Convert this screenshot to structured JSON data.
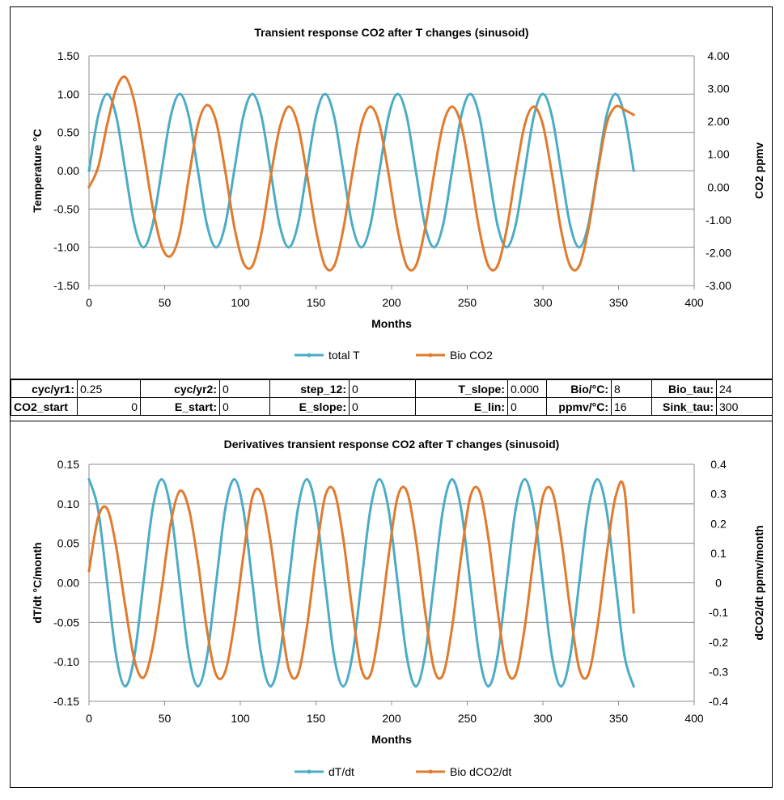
{
  "chart_data": [
    {
      "type": "line",
      "title": "Transient response CO2 after T changes (sinusoid)",
      "xlabel": "Months",
      "ylabel": "Temperature °C",
      "y2label": "CO2 ppmv",
      "xlim": [
        0,
        400
      ],
      "ylim": [
        -1.5,
        1.5
      ],
      "y2lim": [
        -3.0,
        4.0
      ],
      "x_ticks": [
        "0",
        "50",
        "100",
        "150",
        "200",
        "250",
        "300",
        "350",
        "400"
      ],
      "y_ticks": [
        "1.50",
        "1.00",
        "0.50",
        "0.00",
        "-0.50",
        "-1.00",
        "-1.50"
      ],
      "y2_ticks": [
        "4.00",
        "3.00",
        "2.00",
        "1.00",
        "0.00",
        "-1.00",
        "-2.00",
        "-3.00"
      ],
      "grid": true,
      "legend_position": "bottom",
      "x": [
        0,
        6,
        12,
        18,
        24,
        30,
        36,
        42,
        48,
        54,
        60,
        66,
        72,
        78,
        84,
        90,
        96,
        102,
        108,
        114,
        120,
        126,
        132,
        138,
        144,
        150,
        156,
        162,
        168,
        174,
        180,
        186,
        192,
        198,
        204,
        210,
        216,
        222,
        228,
        234,
        240,
        246,
        252,
        258,
        264,
        270,
        276,
        282,
        288,
        294,
        300,
        306,
        312,
        318,
        324,
        330,
        336,
        342,
        348,
        354,
        360
      ],
      "series": [
        {
          "name": "total T",
          "axis": "left",
          "color": "#4BACC6",
          "values": [
            0.0,
            0.71,
            1.0,
            0.71,
            0.0,
            -0.71,
            -1.0,
            -0.71,
            0.0,
            0.71,
            1.0,
            0.71,
            0.0,
            -0.71,
            -1.0,
            -0.71,
            0.0,
            0.71,
            1.0,
            0.71,
            0.0,
            -0.71,
            -1.0,
            -0.71,
            0.0,
            0.71,
            1.0,
            0.71,
            0.0,
            -0.71,
            -1.0,
            -0.71,
            0.0,
            0.71,
            1.0,
            0.71,
            0.0,
            -0.71,
            -1.0,
            -0.71,
            0.0,
            0.71,
            1.0,
            0.71,
            0.0,
            -0.71,
            -1.0,
            -0.71,
            0.0,
            0.71,
            1.0,
            0.71,
            0.0,
            -0.71,
            -1.0,
            -0.71,
            0.0,
            0.71,
            1.0,
            0.71,
            0.0
          ]
        },
        {
          "name": "Bio CO2",
          "axis": "right",
          "color": "#E07B2E",
          "values": [
            0.0,
            0.6,
            1.9,
            3.0,
            3.35,
            2.6,
            1.1,
            -0.6,
            -1.8,
            -2.1,
            -1.4,
            0.3,
            1.9,
            2.5,
            2.0,
            0.5,
            -1.2,
            -2.3,
            -2.4,
            -1.4,
            0.3,
            1.8,
            2.45,
            1.9,
            0.4,
            -1.3,
            -2.4,
            -2.4,
            -1.3,
            0.4,
            1.9,
            2.45,
            1.9,
            0.4,
            -1.3,
            -2.4,
            -2.4,
            -1.3,
            0.4,
            1.9,
            2.45,
            1.9,
            0.4,
            -1.3,
            -2.4,
            -2.4,
            -1.3,
            0.4,
            1.9,
            2.45,
            1.9,
            0.4,
            -1.3,
            -2.4,
            -2.4,
            -1.3,
            0.4,
            1.9,
            2.45,
            2.35,
            2.2
          ]
        }
      ]
    },
    {
      "type": "line",
      "title": "Derivatives transient response CO2 after T changes (sinusoid)",
      "xlabel": "Months",
      "ylabel": "dT/dt  °C/month",
      "y2label": "dCO2/dt ppmv/month",
      "xlim": [
        0,
        400
      ],
      "ylim": [
        -0.15,
        0.15
      ],
      "y2lim": [
        -0.4,
        0.4
      ],
      "x_ticks": [
        "0",
        "50",
        "100",
        "150",
        "200",
        "250",
        "300",
        "350",
        "400"
      ],
      "y_ticks": [
        "0.15",
        "0.10",
        "0.05",
        "0.00",
        "-0.05",
        "-0.10",
        "-0.15"
      ],
      "y2_ticks": [
        "0.4",
        "0.3",
        "0.2",
        "0.1",
        "0",
        "-0.1",
        "-0.2",
        "-0.3",
        "-0.4"
      ],
      "grid": true,
      "legend_position": "bottom",
      "x": [
        0,
        6,
        12,
        18,
        24,
        30,
        36,
        42,
        48,
        54,
        60,
        66,
        72,
        78,
        84,
        90,
        96,
        102,
        108,
        114,
        120,
        126,
        132,
        138,
        144,
        150,
        156,
        162,
        168,
        174,
        180,
        186,
        192,
        198,
        204,
        210,
        216,
        222,
        228,
        234,
        240,
        246,
        252,
        258,
        264,
        270,
        276,
        282,
        288,
        294,
        300,
        306,
        312,
        318,
        324,
        330,
        336,
        342,
        348,
        354,
        360
      ],
      "series": [
        {
          "name": "dT/dt",
          "axis": "left",
          "color": "#4BACC6",
          "values": [
            0.131,
            0.093,
            0.0,
            -0.093,
            -0.131,
            -0.093,
            0.0,
            0.093,
            0.131,
            0.093,
            0.0,
            -0.093,
            -0.131,
            -0.093,
            0.0,
            0.093,
            0.131,
            0.093,
            0.0,
            -0.093,
            -0.131,
            -0.093,
            0.0,
            0.093,
            0.131,
            0.093,
            0.0,
            -0.093,
            -0.131,
            -0.093,
            0.0,
            0.093,
            0.131,
            0.093,
            0.0,
            -0.093,
            -0.131,
            -0.093,
            0.0,
            0.093,
            0.131,
            0.093,
            0.0,
            -0.093,
            -0.131,
            -0.093,
            0.0,
            0.093,
            0.131,
            0.093,
            0.0,
            -0.093,
            -0.131,
            -0.093,
            0.0,
            0.093,
            0.131,
            0.093,
            0.0,
            -0.093,
            -0.131
          ]
        },
        {
          "name": "Bio dCO2/dt",
          "axis": "right",
          "color": "#E07B2E",
          "values": [
            0.04,
            0.22,
            0.25,
            0.12,
            -0.08,
            -0.26,
            -0.32,
            -0.22,
            -0.02,
            0.2,
            0.31,
            0.25,
            0.07,
            -0.16,
            -0.31,
            -0.3,
            -0.14,
            0.09,
            0.29,
            0.3,
            0.14,
            -0.09,
            -0.29,
            -0.31,
            -0.15,
            0.09,
            0.29,
            0.31,
            0.15,
            -0.09,
            -0.29,
            -0.31,
            -0.15,
            0.09,
            0.29,
            0.31,
            0.15,
            -0.09,
            -0.29,
            -0.31,
            -0.15,
            0.09,
            0.29,
            0.31,
            0.15,
            -0.09,
            -0.29,
            -0.31,
            -0.15,
            0.09,
            0.29,
            0.31,
            0.15,
            -0.09,
            -0.29,
            -0.31,
            -0.15,
            0.09,
            0.29,
            0.31,
            -0.1
          ]
        }
      ]
    }
  ],
  "params": {
    "row1": [
      {
        "label": "cyc/yr1:",
        "value": "0.25"
      },
      {
        "label": "cyc/yr2:",
        "value": "0"
      },
      {
        "label": "step_12:",
        "value": "0"
      },
      {
        "label": "T_slope:",
        "value": "0.000"
      },
      {
        "label": "Bio/°C:",
        "value": "8"
      },
      {
        "label": "Bio_tau:",
        "value": "24"
      }
    ],
    "row2": [
      {
        "label": "CO2_start",
        "value": "0"
      },
      {
        "label": "E_start:",
        "value": "0"
      },
      {
        "label": "E_slope:",
        "value": "0"
      },
      {
        "label": "E_lin:",
        "value": "0"
      },
      {
        "label": "ppmv/°C:",
        "value": "16"
      },
      {
        "label": "Sink_tau:",
        "value": "300"
      }
    ]
  }
}
